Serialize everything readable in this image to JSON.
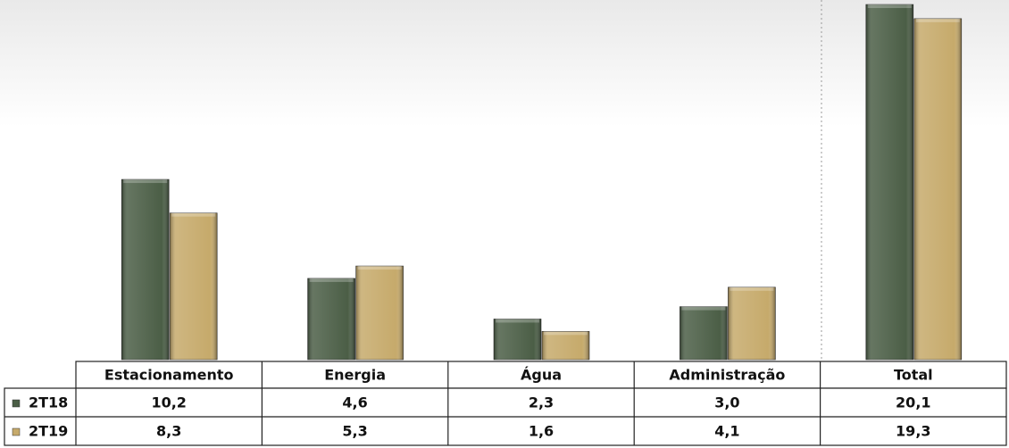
{
  "chart_data": {
    "type": "bar",
    "categories": [
      "Estacionamento",
      "Energia",
      "Água",
      "Administração",
      "Total"
    ],
    "series": [
      {
        "name": "2T18",
        "color": "#4b5e46",
        "values": [
          10.2,
          4.6,
          2.3,
          3.0,
          20.1
        ],
        "value_labels": [
          "10,2",
          "4,6",
          "2,3",
          "3,0",
          "20,1"
        ]
      },
      {
        "name": "2T19",
        "color": "#c6aa6b",
        "values": [
          8.3,
          5.3,
          1.6,
          4.1,
          19.3
        ],
        "value_labels": [
          "8,3",
          "5,3",
          "1,6",
          "4,1",
          "19,3"
        ]
      }
    ]
  }
}
